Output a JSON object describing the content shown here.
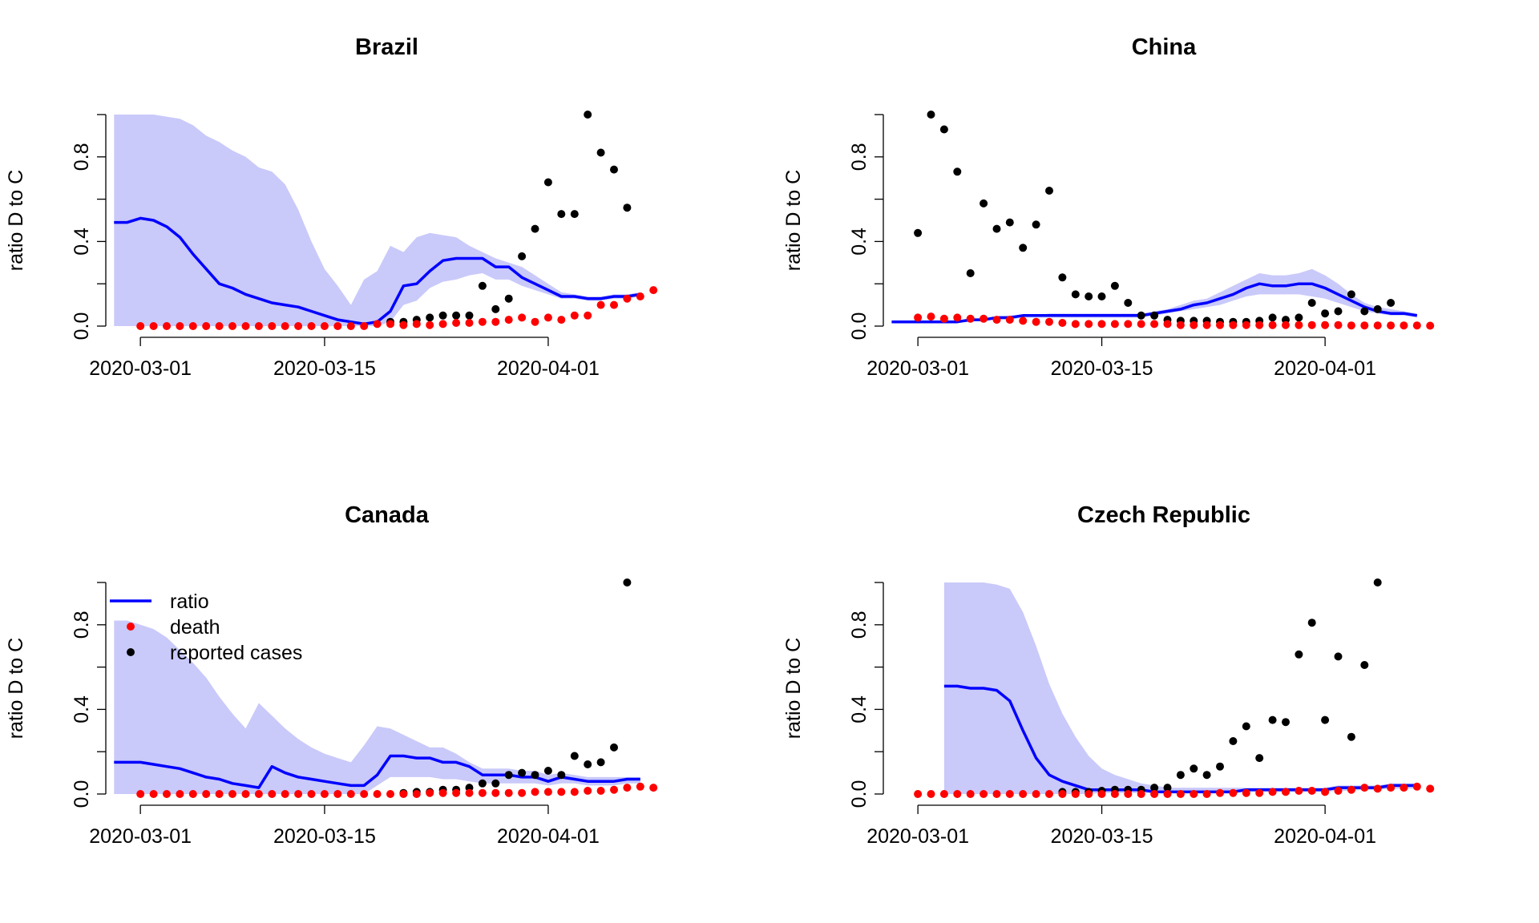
{
  "colors": {
    "ratio": "#0000ff",
    "band": "#c9c9fa",
    "death": "#ff0000",
    "reported": "#000000",
    "axis": "#000000"
  },
  "legend": {
    "ratio": "ratio",
    "death": "death",
    "reported": "reported cases"
  },
  "chart_data": [
    {
      "type": "line",
      "title": "Brazil",
      "xlabel": "",
      "ylabel": "ratio D to C",
      "x_start": "2020-02-28",
      "x_ticks": [
        "2020-03-01",
        "2020-03-15",
        "2020-04-01"
      ],
      "y_ticks": [
        "0.0",
        "0.4",
        "0.8"
      ],
      "ylim": [
        0,
        1
      ],
      "series": [
        {
          "name": "ratio",
          "kind": "line",
          "values": [
            0.49,
            0.49,
            0.51,
            0.5,
            0.47,
            0.42,
            0.34,
            0.27,
            0.2,
            0.18,
            0.15,
            0.13,
            0.11,
            0.1,
            0.09,
            0.07,
            0.05,
            0.03,
            0.02,
            0.01,
            0.02,
            0.07,
            0.19,
            0.2,
            0.26,
            0.31,
            0.32,
            0.32,
            0.32,
            0.28,
            0.28,
            0.23,
            0.2,
            0.17,
            0.14,
            0.14,
            0.13,
            0.13,
            0.14,
            0.14,
            0.15
          ]
        },
        {
          "name": "ratio band upper",
          "values": [
            1.0,
            1.0,
            1.0,
            1.0,
            0.99,
            0.98,
            0.95,
            0.9,
            0.87,
            0.83,
            0.8,
            0.75,
            0.73,
            0.67,
            0.55,
            0.4,
            0.27,
            0.19,
            0.1,
            0.22,
            0.26,
            0.38,
            0.35,
            0.42,
            0.44,
            0.43,
            0.42,
            0.38,
            0.35,
            0.32,
            0.3,
            0.28,
            0.24,
            0.2,
            0.16,
            0.15,
            0.14,
            0.14,
            0.15,
            0.15,
            0.16
          ]
        },
        {
          "name": "ratio band lower",
          "values": [
            0,
            0,
            0,
            0,
            0,
            0,
            0,
            0,
            0,
            0,
            0,
            0,
            0,
            0,
            0,
            0,
            0,
            0,
            0,
            0,
            0,
            0.02,
            0.1,
            0.12,
            0.18,
            0.21,
            0.22,
            0.24,
            0.25,
            0.22,
            0.22,
            0.19,
            0.17,
            0.15,
            0.13,
            0.13,
            0.12,
            0.12,
            0.13,
            0.13,
            0.14
          ]
        },
        {
          "name": "death",
          "start": 2,
          "values": [
            0,
            0,
            0,
            0,
            0,
            0,
            0,
            0,
            0,
            0,
            0,
            0,
            0,
            0,
            0,
            0,
            0,
            0,
            0.01,
            0.01,
            0.005,
            0.01,
            0.005,
            0.01,
            0.015,
            0.015,
            0.02,
            0.02,
            0.03,
            0.04,
            0.02,
            0.04,
            0.03,
            0.05,
            0.05,
            0.1,
            0.1,
            0.13,
            0.14,
            0.17
          ]
        },
        {
          "name": "reported cases",
          "start": 21,
          "values": [
            0.02,
            0.02,
            0.03,
            0.04,
            0.05,
            0.05,
            0.05,
            0.19,
            0.08,
            0.13,
            0.33,
            0.46,
            0.68,
            0.53,
            0.53,
            1.0,
            0.82,
            0.74,
            0.56
          ]
        }
      ]
    },
    {
      "type": "line",
      "title": "China",
      "xlabel": "",
      "ylabel": "ratio D to C",
      "x_start": "2020-02-28",
      "x_ticks": [
        "2020-03-01",
        "2020-03-15",
        "2020-04-01"
      ],
      "y_ticks": [
        "0.0",
        "0.4",
        "0.8"
      ],
      "ylim": [
        0,
        1
      ],
      "series": [
        {
          "name": "ratio",
          "kind": "line",
          "values": [
            0.02,
            0.02,
            0.02,
            0.02,
            0.02,
            0.02,
            0.03,
            0.03,
            0.04,
            0.04,
            0.05,
            0.05,
            0.05,
            0.05,
            0.05,
            0.05,
            0.05,
            0.05,
            0.05,
            0.05,
            0.06,
            0.07,
            0.08,
            0.1,
            0.11,
            0.13,
            0.15,
            0.18,
            0.2,
            0.19,
            0.19,
            0.2,
            0.2,
            0.18,
            0.15,
            0.12,
            0.09,
            0.07,
            0.06,
            0.06,
            0.05
          ]
        },
        {
          "name": "ratio band upper",
          "values": [
            0.02,
            0.02,
            0.02,
            0.02,
            0.02,
            0.03,
            0.03,
            0.04,
            0.04,
            0.05,
            0.05,
            0.05,
            0.06,
            0.06,
            0.06,
            0.06,
            0.06,
            0.06,
            0.06,
            0.06,
            0.07,
            0.08,
            0.1,
            0.12,
            0.13,
            0.16,
            0.19,
            0.22,
            0.25,
            0.24,
            0.24,
            0.25,
            0.27,
            0.24,
            0.2,
            0.15,
            0.11,
            0.09,
            0.08,
            0.07,
            0.06
          ]
        },
        {
          "name": "ratio band lower",
          "values": [
            0.02,
            0.02,
            0.02,
            0.02,
            0.02,
            0.02,
            0.02,
            0.03,
            0.03,
            0.03,
            0.04,
            0.04,
            0.04,
            0.04,
            0.04,
            0.04,
            0.04,
            0.04,
            0.04,
            0.04,
            0.05,
            0.06,
            0.07,
            0.08,
            0.09,
            0.1,
            0.12,
            0.14,
            0.15,
            0.15,
            0.15,
            0.15,
            0.14,
            0.13,
            0.11,
            0.09,
            0.07,
            0.06,
            0.05,
            0.05,
            0.04
          ]
        },
        {
          "name": "death",
          "start": 2,
          "values": [
            0.04,
            0.045,
            0.035,
            0.04,
            0.035,
            0.035,
            0.03,
            0.03,
            0.025,
            0.02,
            0.02,
            0.015,
            0.01,
            0.01,
            0.01,
            0.01,
            0.01,
            0.01,
            0.01,
            0.01,
            0.005,
            0.005,
            0.005,
            0.005,
            0.005,
            0.005,
            0.005,
            0.005,
            0.005,
            0.005,
            0.005,
            0.005,
            0.005,
            0.003,
            0.003,
            0.003,
            0.003,
            0.003,
            0.003,
            0.002
          ]
        },
        {
          "name": "reported cases",
          "start": 2,
          "values": [
            0.44,
            1.0,
            0.93,
            0.73,
            0.25,
            0.58,
            0.46,
            0.49,
            0.37,
            0.48,
            0.64,
            0.23,
            0.15,
            0.14,
            0.14,
            0.19,
            0.11,
            0.05,
            0.05,
            0.03,
            0.025,
            0.025,
            0.025,
            0.02,
            0.02,
            0.02,
            0.025,
            0.04,
            0.03,
            0.04,
            0.11,
            0.06,
            0.07,
            0.15,
            0.07,
            0.08,
            0.11
          ]
        }
      ]
    },
    {
      "type": "line",
      "title": "Canada",
      "xlabel": "",
      "ylabel": "ratio D to C",
      "x_start": "2020-02-28",
      "x_ticks": [
        "2020-03-01",
        "2020-03-15",
        "2020-04-01"
      ],
      "y_ticks": [
        "0.0",
        "0.4",
        "0.8"
      ],
      "ylim": [
        0,
        1
      ],
      "series": [
        {
          "name": "ratio",
          "kind": "line",
          "values": [
            0.15,
            0.15,
            0.15,
            0.14,
            0.13,
            0.12,
            0.1,
            0.08,
            0.07,
            0.05,
            0.04,
            0.03,
            0.13,
            0.1,
            0.08,
            0.07,
            0.06,
            0.05,
            0.04,
            0.04,
            0.09,
            0.18,
            0.18,
            0.17,
            0.17,
            0.15,
            0.15,
            0.13,
            0.09,
            0.09,
            0.09,
            0.08,
            0.08,
            0.06,
            0.08,
            0.07,
            0.06,
            0.06,
            0.06,
            0.07,
            0.07
          ]
        },
        {
          "name": "ratio band upper",
          "values": [
            0.82,
            0.82,
            0.8,
            0.78,
            0.74,
            0.68,
            0.62,
            0.55,
            0.46,
            0.38,
            0.31,
            0.43,
            0.37,
            0.31,
            0.26,
            0.22,
            0.19,
            0.17,
            0.15,
            0.23,
            0.32,
            0.31,
            0.28,
            0.25,
            0.22,
            0.22,
            0.19,
            0.15,
            0.12,
            0.12,
            0.12,
            0.11,
            0.11,
            0.09,
            0.1,
            0.09,
            0.08,
            0.08,
            0.08,
            0.08,
            0.08
          ]
        },
        {
          "name": "ratio band lower",
          "values": [
            0,
            0,
            0,
            0,
            0,
            0,
            0,
            0,
            0,
            0,
            0,
            0,
            0,
            0,
            0,
            0,
            0,
            0,
            0,
            0,
            0.04,
            0.08,
            0.08,
            0.08,
            0.08,
            0.07,
            0.07,
            0.06,
            0.05,
            0.05,
            0.05,
            0.05,
            0.05,
            0.04,
            0.05,
            0.05,
            0.04,
            0.04,
            0.04,
            0.05,
            0.05
          ]
        },
        {
          "name": "death",
          "start": 2,
          "values": [
            0,
            0,
            0,
            0,
            0,
            0,
            0,
            0,
            0,
            0,
            0,
            0,
            0,
            0,
            0,
            0,
            0,
            0,
            0,
            0,
            0,
            0,
            0.005,
            0.005,
            0.005,
            0.005,
            0.005,
            0.005,
            0.005,
            0.005,
            0.01,
            0.01,
            0.01,
            0.01,
            0.015,
            0.015,
            0.02,
            0.03,
            0.035,
            0.03
          ]
        },
        {
          "name": "reported cases",
          "start": 22,
          "values": [
            0.005,
            0.01,
            0.01,
            0.02,
            0.02,
            0.03,
            0.05,
            0.05,
            0.09,
            0.1,
            0.09,
            0.11,
            0.09,
            0.18,
            0.14,
            0.15,
            0.22,
            1.0
          ]
        }
      ]
    },
    {
      "type": "line",
      "title": "Czech Republic",
      "xlabel": "",
      "ylabel": "ratio D to C",
      "x_start": "2020-02-28",
      "x_ticks": [
        "2020-03-01",
        "2020-03-15",
        "2020-04-01"
      ],
      "y_ticks": [
        "0.0",
        "0.4",
        "0.8"
      ],
      "ylim": [
        0,
        1
      ],
      "series": [
        {
          "name": "ratio",
          "kind": "line",
          "start": 4,
          "values": [
            0.51,
            0.51,
            0.5,
            0.5,
            0.49,
            0.44,
            0.3,
            0.17,
            0.09,
            0.06,
            0.04,
            0.02,
            0.02,
            0.02,
            0.02,
            0.02,
            0.01,
            0.01,
            0.01,
            0.01,
            0.01,
            0.01,
            0.01,
            0.02,
            0.02,
            0.02,
            0.02,
            0.02,
            0.02,
            0.02,
            0.03,
            0.03,
            0.03,
            0.03,
            0.04,
            0.04,
            0.04
          ]
        },
        {
          "name": "ratio band upper",
          "start": 4,
          "values": [
            1.0,
            1.0,
            1.0,
            1.0,
            0.99,
            0.97,
            0.86,
            0.7,
            0.52,
            0.38,
            0.27,
            0.18,
            0.12,
            0.09,
            0.07,
            0.05,
            0.04,
            0.03,
            0.03,
            0.03,
            0.03,
            0.03,
            0.03,
            0.03,
            0.03,
            0.03,
            0.03,
            0.03,
            0.03,
            0.03,
            0.04,
            0.04,
            0.04,
            0.04,
            0.05,
            0.05,
            0.05
          ]
        },
        {
          "name": "ratio band lower",
          "start": 4,
          "values": [
            0,
            0,
            0,
            0,
            0,
            0,
            0,
            0,
            0,
            0,
            0,
            0,
            0.005,
            0.005,
            0.005,
            0.005,
            0.005,
            0.005,
            0.005,
            0.005,
            0.005,
            0.005,
            0.005,
            0.01,
            0.01,
            0.01,
            0.01,
            0.01,
            0.01,
            0.01,
            0.015,
            0.015,
            0.02,
            0.02,
            0.025,
            0.025,
            0.025
          ]
        },
        {
          "name": "death",
          "start": 2,
          "values": [
            0,
            0,
            0,
            0,
            0,
            0,
            0,
            0,
            0,
            0,
            0,
            0,
            0,
            0,
            0,
            0,
            0,
            0,
            0,
            0,
            0,
            0,
            0,
            0.005,
            0.005,
            0.005,
            0.005,
            0.01,
            0.01,
            0.015,
            0.015,
            0.01,
            0.015,
            0.02,
            0.03,
            0.025,
            0.03,
            0.03,
            0.035,
            0.025
          ]
        },
        {
          "name": "reported cases",
          "start": 13,
          "values": [
            0.01,
            0.01,
            0.01,
            0.015,
            0.02,
            0.02,
            0.02,
            0.03,
            0.03,
            0.09,
            0.12,
            0.09,
            0.13,
            0.25,
            0.32,
            0.17,
            0.35,
            0.34,
            0.66,
            0.81,
            0.35,
            0.65,
            0.27,
            0.61,
            1.0
          ]
        }
      ]
    }
  ]
}
